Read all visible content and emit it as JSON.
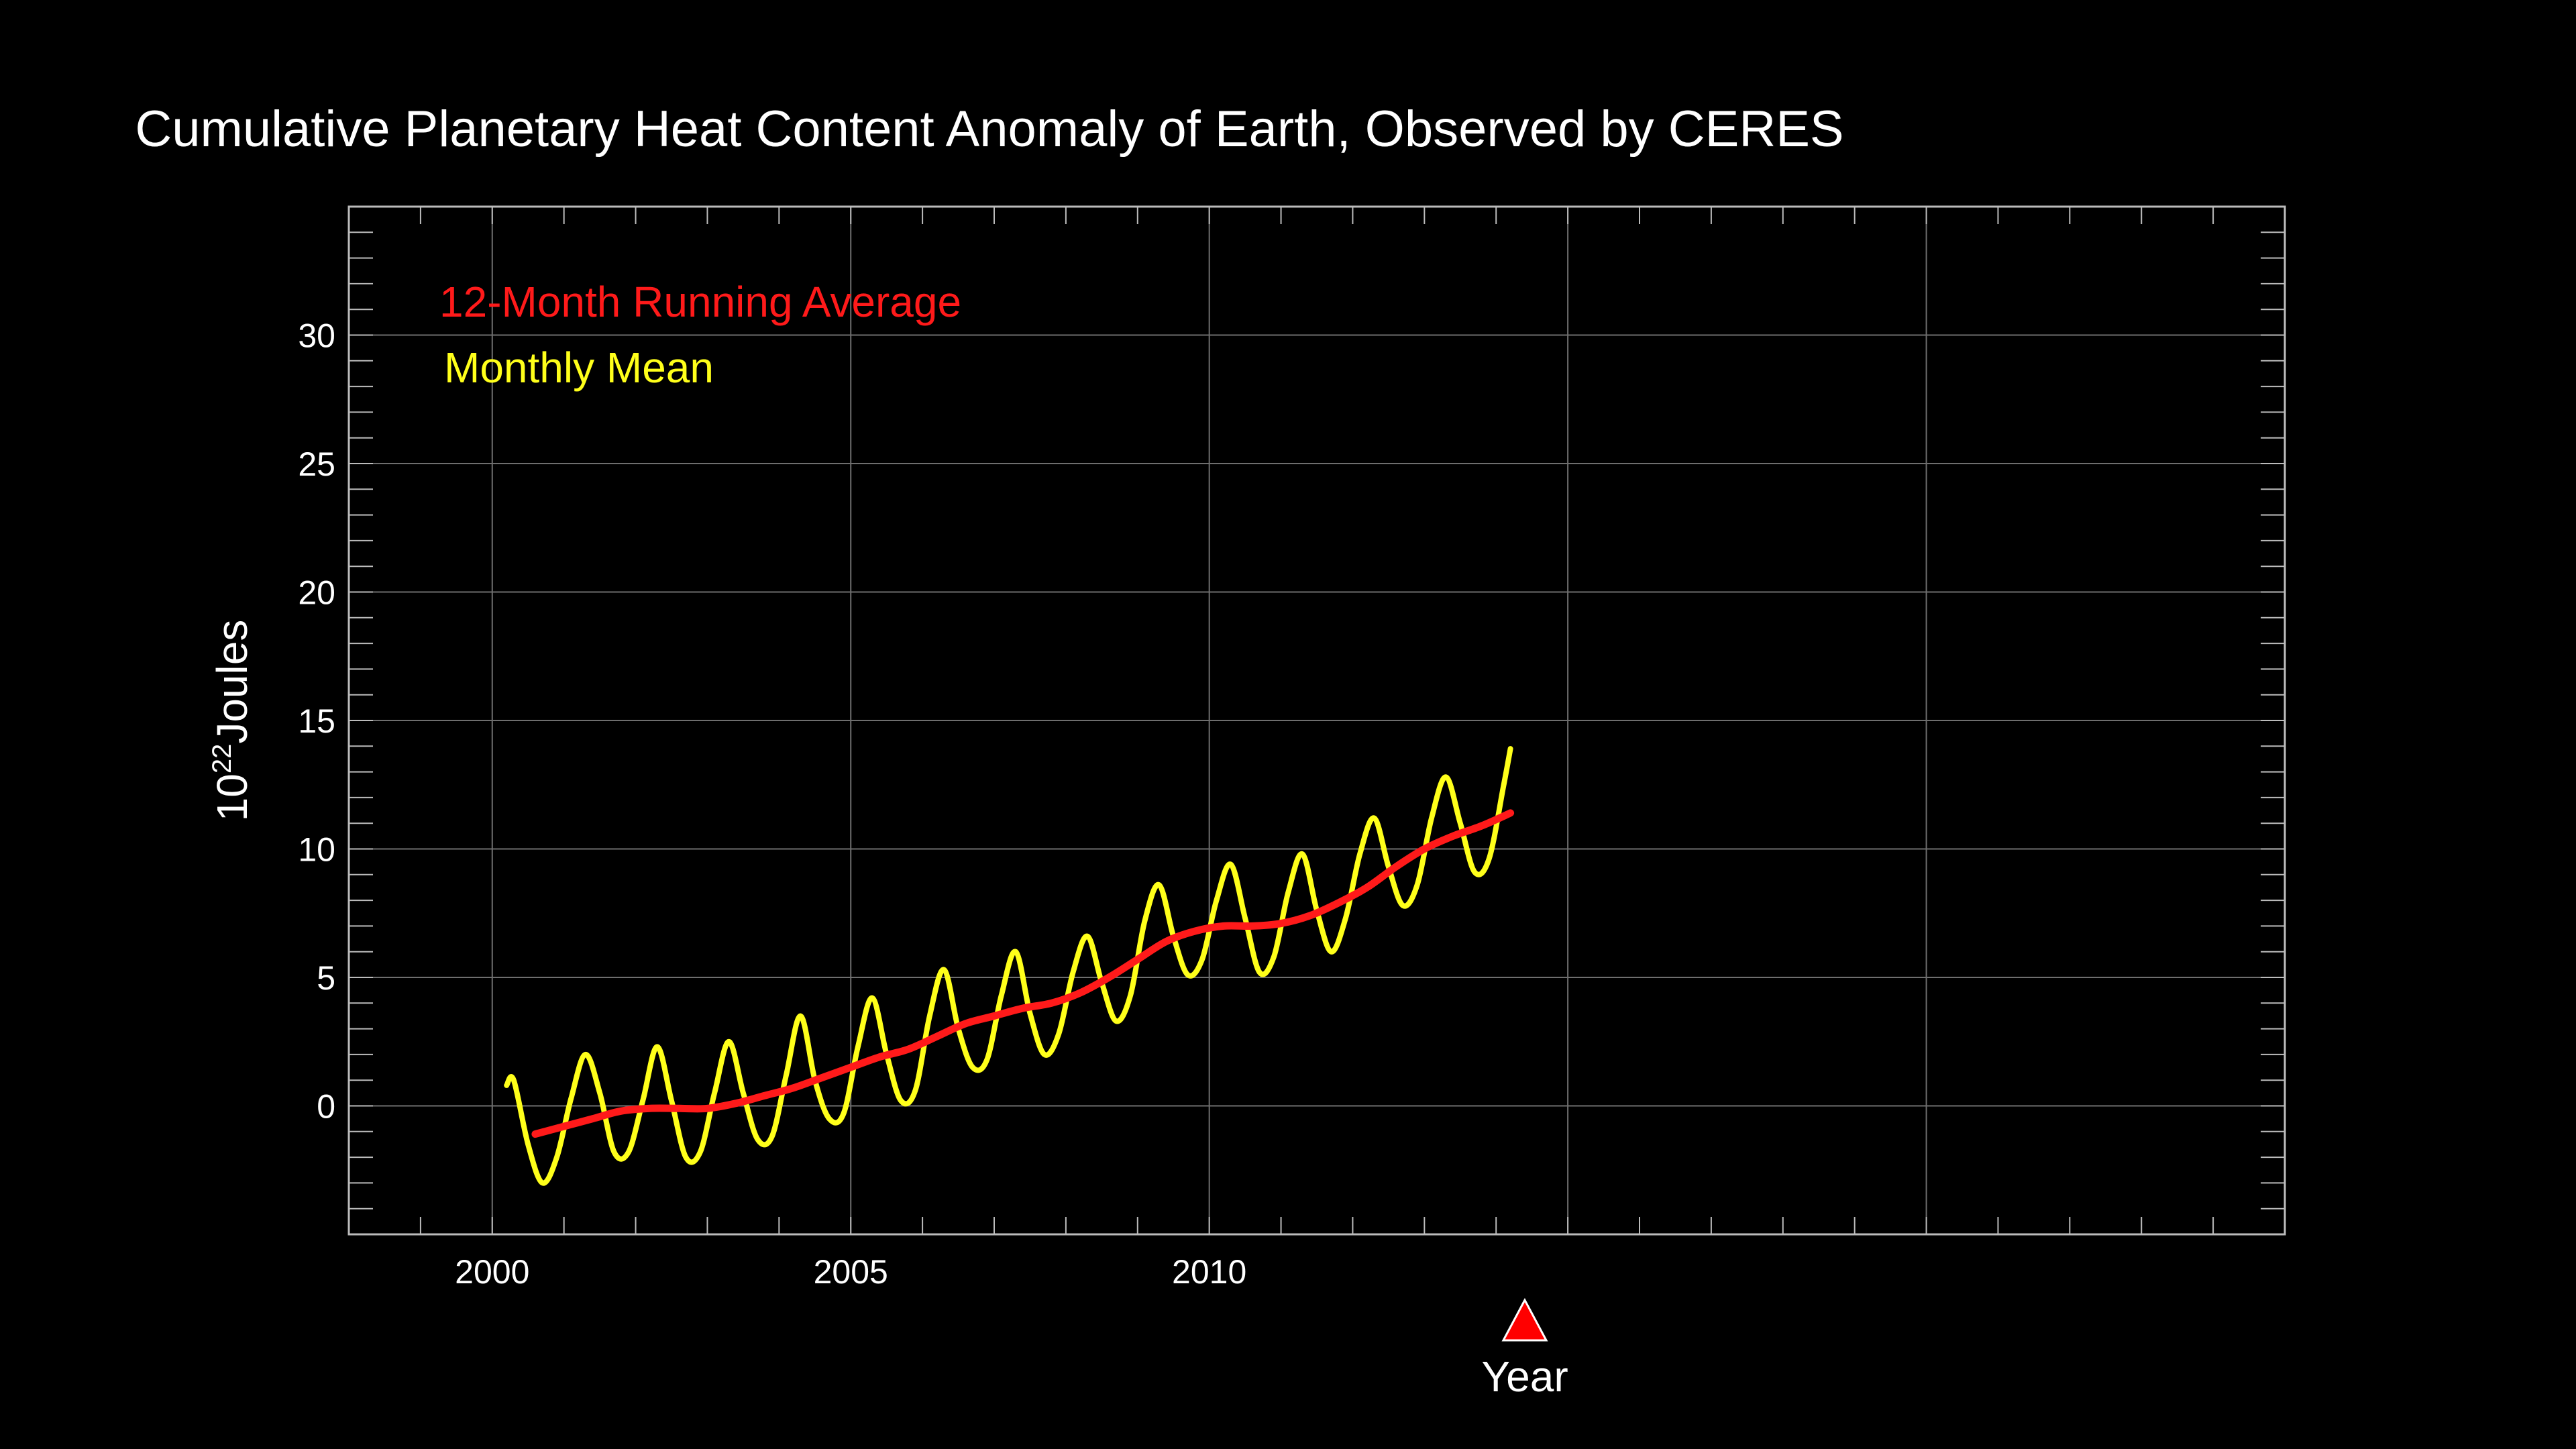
{
  "chart_data": {
    "type": "line",
    "title": "Cumulative Planetary Heat Content Anomaly of Earth, Observed by CERES",
    "ylabel_base": "10",
    "ylabel_exponent": "22",
    "ylabel_unit": "Joules",
    "xlabel": "Year",
    "xlim": [
      1998,
      2025
    ],
    "ylim": [
      -5,
      35
    ],
    "xticks": [
      "2000",
      "2005",
      "2010"
    ],
    "yticks": [
      "0",
      "5",
      "10",
      "15",
      "20",
      "25",
      "30"
    ],
    "grid": true,
    "legend_position": "top-left",
    "marker": {
      "year": 2014.4,
      "color": "#ff0000"
    },
    "series": [
      {
        "name": "12-Month Running Average",
        "color": "#ff1a1a",
        "x": [
          2000.6,
          2001.0,
          2001.4,
          2001.8,
          2002.2,
          2002.6,
          2003.0,
          2003.4,
          2003.8,
          2004.2,
          2004.6,
          2005.0,
          2005.4,
          2005.8,
          2006.2,
          2006.6,
          2007.0,
          2007.4,
          2007.8,
          2008.2,
          2008.6,
          2009.0,
          2009.4,
          2009.8,
          2010.2,
          2010.6,
          2011.0,
          2011.4,
          2011.8,
          2012.2,
          2012.6,
          2013.0,
          2013.4,
          2013.8,
          2014.2
        ],
        "y": [
          -1.1,
          -0.8,
          -0.5,
          -0.2,
          -0.1,
          -0.1,
          -0.1,
          0.1,
          0.4,
          0.7,
          1.1,
          1.5,
          1.9,
          2.2,
          2.7,
          3.2,
          3.5,
          3.8,
          4.0,
          4.4,
          5.0,
          5.7,
          6.4,
          6.8,
          7.0,
          7.0,
          7.1,
          7.4,
          7.9,
          8.5,
          9.3,
          10.0,
          10.5,
          10.9,
          11.4
        ]
      },
      {
        "name": "Monthly Mean",
        "color": "#ffff1a",
        "x": [
          2000.2,
          2000.3,
          2000.5,
          2000.7,
          2000.9,
          2001.1,
          2001.3,
          2001.5,
          2001.7,
          2001.9,
          2002.1,
          2002.3,
          2002.5,
          2002.7,
          2002.9,
          2003.1,
          2003.3,
          2003.5,
          2003.7,
          2003.9,
          2004.1,
          2004.3,
          2004.5,
          2004.7,
          2004.9,
          2005.1,
          2005.3,
          2005.5,
          2005.7,
          2005.9,
          2006.1,
          2006.3,
          2006.5,
          2006.7,
          2006.9,
          2007.1,
          2007.3,
          2007.5,
          2007.7,
          2007.9,
          2008.1,
          2008.3,
          2008.5,
          2008.7,
          2008.9,
          2009.1,
          2009.3,
          2009.5,
          2009.7,
          2009.9,
          2010.1,
          2010.3,
          2010.5,
          2010.7,
          2010.9,
          2011.1,
          2011.3,
          2011.5,
          2011.7,
          2011.9,
          2012.1,
          2012.3,
          2012.5,
          2012.7,
          2012.9,
          2013.1,
          2013.3,
          2013.5,
          2013.7,
          2013.9,
          2014.1,
          2014.2
        ],
        "y": [
          0.8,
          1.0,
          -1.5,
          -3.0,
          -2.0,
          0.3,
          2.0,
          0.5,
          -1.8,
          -1.8,
          0.2,
          2.3,
          0.2,
          -2.0,
          -1.8,
          0.5,
          2.5,
          0.5,
          -1.3,
          -1.2,
          1.2,
          3.5,
          1.0,
          -0.5,
          -0.3,
          2.3,
          4.2,
          2.0,
          0.2,
          0.6,
          3.5,
          5.3,
          3.0,
          1.5,
          1.8,
          4.3,
          6.0,
          3.6,
          2.0,
          2.8,
          5.2,
          6.6,
          4.8,
          3.3,
          4.3,
          7.2,
          8.6,
          6.6,
          5.1,
          5.7,
          8.0,
          9.4,
          7.3,
          5.2,
          5.8,
          8.3,
          9.8,
          7.6,
          6.0,
          7.3,
          9.8,
          11.2,
          9.3,
          7.8,
          8.6,
          11.2,
          12.8,
          11.0,
          9.1,
          9.6,
          12.4,
          13.9
        ]
      }
    ]
  }
}
